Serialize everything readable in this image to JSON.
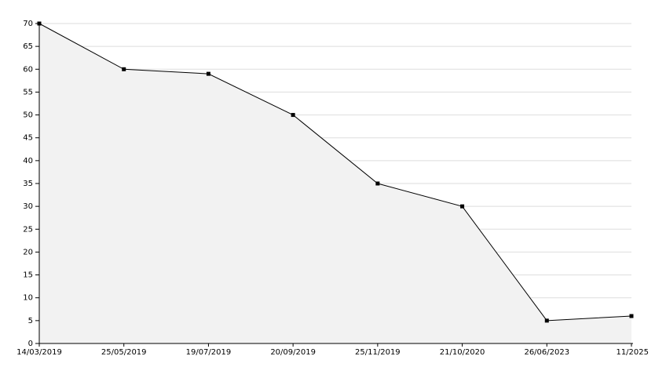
{
  "chart_data": {
    "type": "area",
    "categories": [
      "14/03/2019",
      "25/05/2019",
      "19/07/2019",
      "20/09/2019",
      "25/11/2019",
      "21/10/2020",
      "26/06/2023",
      "11/2025"
    ],
    "values": [
      70,
      60,
      59,
      50,
      35,
      30,
      5,
      6
    ],
    "color": "#000000",
    "fill": "#f2f2f2",
    "ylim": [
      0,
      70
    ],
    "yticks": [
      0,
      5,
      10,
      15,
      20,
      25,
      30,
      35,
      40,
      45,
      50,
      55,
      60,
      65,
      70
    ],
    "grid": true
  }
}
